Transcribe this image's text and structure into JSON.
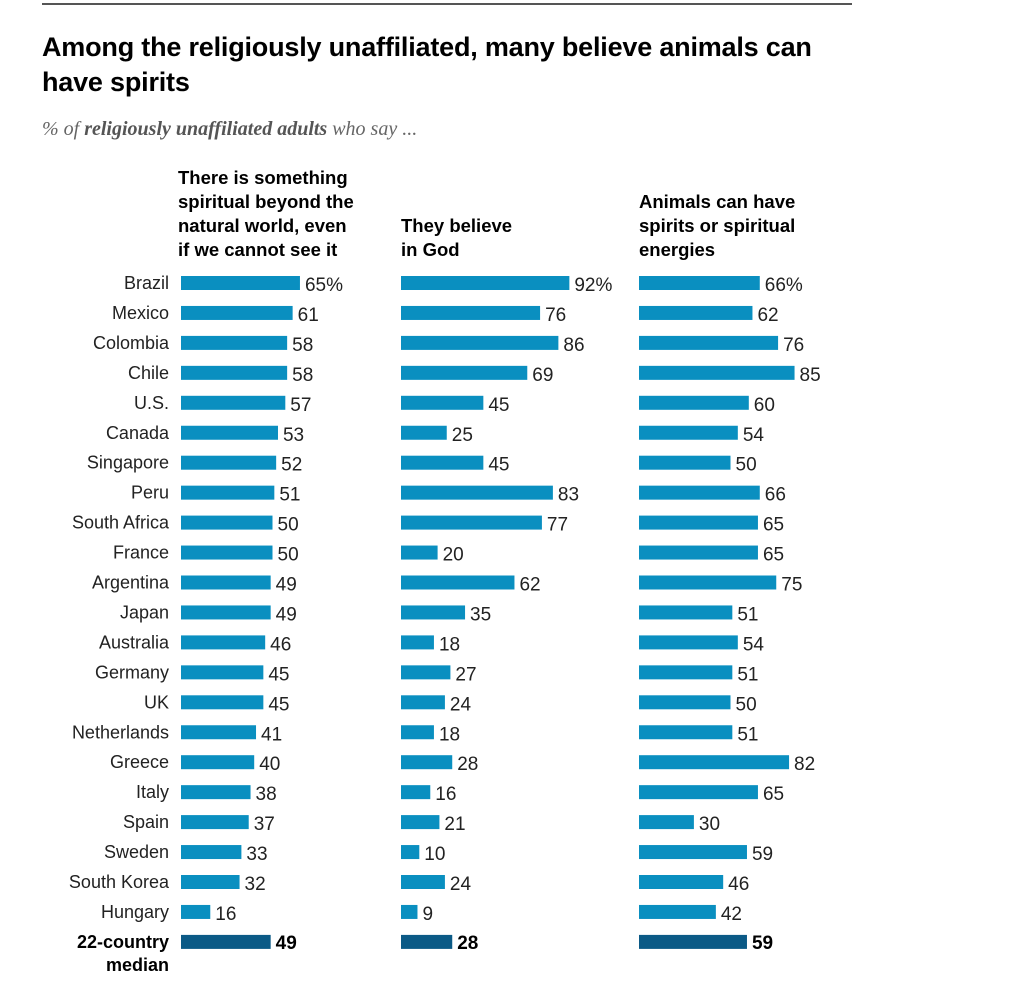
{
  "header": {
    "title": "Among the religiously unaffiliated, many believe animals can have spirits",
    "subtitle_prefix": "% of ",
    "subtitle_bold": "religiously unaffiliated adults",
    "subtitle_suffix": " who say ..."
  },
  "colors": {
    "bar": "#0a8fc0",
    "median_bar": "#0b5a86",
    "text": "#222222",
    "rule": "#555555"
  },
  "chart_data": {
    "type": "bar",
    "orientation": "horizontal",
    "title": "Among the religiously unaffiliated, many believe animals can have spirits",
    "subtitle": "% of religiously unaffiliated adults who say ...",
    "unit": "%",
    "categories": [
      "Brazil",
      "Mexico",
      "Colombia",
      "Chile",
      "U.S.",
      "Canada",
      "Singapore",
      "Peru",
      "South Africa",
      "France",
      "Argentina",
      "Japan",
      "Australia",
      "Germany",
      "UK",
      "Netherlands",
      "Greece",
      "Italy",
      "Spain",
      "Sweden",
      "South Korea",
      "Hungary"
    ],
    "series": [
      {
        "name": "There is something spiritual beyond the natural world, even if we cannot see it",
        "values": [
          65,
          61,
          58,
          58,
          57,
          53,
          52,
          51,
          50,
          50,
          49,
          49,
          46,
          45,
          45,
          41,
          40,
          38,
          37,
          33,
          32,
          16
        ],
        "median": 49
      },
      {
        "name": "They believe in God",
        "values": [
          92,
          76,
          86,
          69,
          45,
          25,
          45,
          83,
          77,
          20,
          62,
          35,
          18,
          27,
          24,
          18,
          28,
          16,
          21,
          10,
          24,
          9
        ],
        "median": 28
      },
      {
        "name": "Animals can have spirits or spiritual energies",
        "values": [
          66,
          62,
          76,
          85,
          60,
          54,
          50,
          66,
          65,
          65,
          75,
          51,
          54,
          51,
          50,
          51,
          82,
          65,
          30,
          59,
          46,
          42
        ],
        "median": 59
      }
    ],
    "median_label": "22-country median",
    "median_label_lines": [
      "22-country",
      "median"
    ],
    "first_value_suffix": "%",
    "xlim": [
      0,
      100
    ],
    "grid": false,
    "legend": "none"
  },
  "column_headers": [
    [
      "There is something",
      "spiritual beyond the",
      "natural world, even",
      "if we cannot see it"
    ],
    [
      "They believe",
      "in God"
    ],
    [
      "Animals can have",
      "spirits or spiritual",
      "energies"
    ]
  ]
}
